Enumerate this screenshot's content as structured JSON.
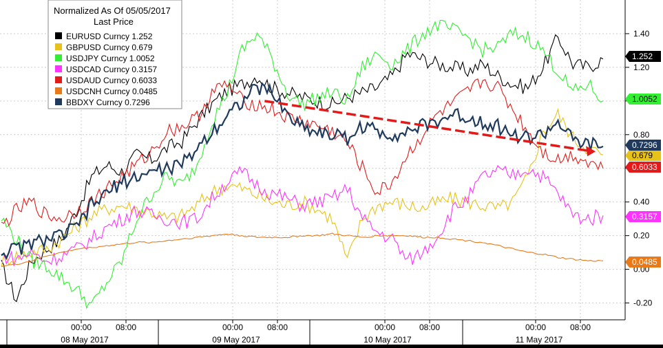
{
  "legend": {
    "title": "Normalized As Of 05/05/2017",
    "subtitle": "Last Price",
    "entries": [
      {
        "name": "EURUSD Curncy",
        "value": "1.252",
        "color": "#000000"
      },
      {
        "name": "GBPUSD Curncy",
        "value": "0.679",
        "color": "#e6c21a"
      },
      {
        "name": "USDJPY Curncy",
        "value": "1.0052",
        "color": "#33ee33"
      },
      {
        "name": "USDCAD Curncy",
        "value": "0.3157",
        "color": "#ff33ff"
      },
      {
        "name": "USDAUD Curncy",
        "value": "0.6033",
        "color": "#e31a1a"
      },
      {
        "name": "USDCNH Curncy",
        "value": "0.0485",
        "color": "#e87a1a"
      },
      {
        "name": "BBDXY Curncy",
        "value": "0.7296",
        "color": "#1f3a5c"
      }
    ]
  },
  "chart_data": {
    "type": "line",
    "ylim": [
      -0.3,
      1.6
    ],
    "y_ticks": [
      "1.40",
      "1.20",
      "1.00",
      "0.80",
      "0.60",
      "0.40",
      "0.20",
      "0.00",
      "-0.20"
    ],
    "y_tick_values": [
      1.4,
      1.2,
      1.0,
      0.8,
      0.6,
      0.4,
      0.2,
      0.0,
      -0.2
    ],
    "time_ticks": [
      "00:00",
      "08:00",
      "00:00",
      "08:00",
      "00:00",
      "08:00",
      "00:00",
      "08:00"
    ],
    "day_labels": [
      "08 May 2017",
      "09 May 2017",
      "10 May 2017",
      "11 May 2017"
    ],
    "series": [
      {
        "name": "EURUSD Curncy",
        "color": "#000000",
        "last": "1.252",
        "values": [
          0.02,
          -0.18,
          0.05,
          0.12,
          0.18,
          0.35,
          0.55,
          0.62,
          0.58,
          0.68,
          0.65,
          0.72,
          0.76,
          0.88,
          0.98,
          1.06,
          1.1,
          1.15,
          1.08,
          1.05,
          1.02,
          1.0,
          0.98,
          1.02,
          1.05,
          1.08,
          1.15,
          1.28,
          1.25,
          1.22,
          1.2,
          1.18,
          1.22,
          1.15,
          1.1,
          1.08,
          1.2,
          1.38,
          1.22,
          1.2,
          1.25
        ]
      },
      {
        "name": "GBPUSD Curncy",
        "color": "#e6c21a",
        "last": "0.679",
        "values": [
          0.05,
          0.08,
          0.1,
          0.12,
          0.18,
          0.25,
          0.32,
          0.36,
          0.38,
          0.36,
          0.34,
          0.3,
          0.32,
          0.38,
          0.46,
          0.5,
          0.48,
          0.44,
          0.4,
          0.38,
          0.4,
          0.36,
          0.3,
          0.05,
          0.3,
          0.38,
          0.4,
          0.38,
          0.36,
          0.4,
          0.42,
          0.4,
          0.38,
          0.36,
          0.4,
          0.55,
          0.82,
          0.92,
          0.78,
          0.72,
          0.68
        ]
      },
      {
        "name": "USDJPY Curncy",
        "color": "#33ee33",
        "last": "1.0052",
        "values": [
          0.3,
          0.18,
          0.05,
          0.02,
          -0.05,
          -0.12,
          -0.22,
          -0.08,
          0.05,
          0.3,
          0.45,
          0.55,
          0.5,
          0.62,
          0.88,
          1.05,
          1.3,
          1.4,
          1.25,
          1.05,
          0.98,
          1.02,
          1.05,
          1.0,
          1.2,
          1.28,
          1.22,
          1.3,
          1.4,
          1.45,
          1.42,
          1.38,
          1.3,
          1.32,
          1.4,
          1.38,
          1.3,
          1.18,
          1.05,
          1.1,
          1.0
        ]
      },
      {
        "name": "USDCAD Curncy",
        "color": "#ff33ff",
        "last": "0.3157",
        "values": [
          0.08,
          0.06,
          0.1,
          0.05,
          0.08,
          0.12,
          0.18,
          0.25,
          0.3,
          0.35,
          0.32,
          0.3,
          0.28,
          0.3,
          0.42,
          0.52,
          0.58,
          0.5,
          0.45,
          0.42,
          0.38,
          0.4,
          0.42,
          0.48,
          0.3,
          0.22,
          0.18,
          0.05,
          0.1,
          0.2,
          0.35,
          0.42,
          0.55,
          0.58,
          0.56,
          0.6,
          0.55,
          0.45,
          0.32,
          0.3,
          0.32
        ]
      },
      {
        "name": "USDAUD Curncy",
        "color": "#e31a1a",
        "last": "0.6033",
        "values": [
          0.25,
          0.35,
          0.4,
          0.32,
          0.3,
          0.35,
          0.4,
          0.48,
          0.55,
          0.62,
          0.7,
          0.82,
          0.85,
          0.9,
          1.05,
          1.1,
          1.0,
          0.98,
          0.95,
          0.9,
          0.88,
          0.85,
          0.82,
          0.75,
          0.6,
          0.45,
          0.52,
          0.68,
          0.8,
          0.92,
          0.98,
          1.05,
          1.12,
          1.08,
          0.95,
          0.82,
          0.7,
          0.65,
          0.68,
          0.64,
          0.6
        ]
      },
      {
        "name": "USDCNH Curncy",
        "color": "#e87a1a",
        "last": "0.0485",
        "values": [
          0.02,
          0.03,
          0.05,
          0.08,
          0.1,
          0.12,
          0.13,
          0.14,
          0.15,
          0.16,
          0.16,
          0.17,
          0.18,
          0.19,
          0.2,
          0.21,
          0.2,
          0.19,
          0.19,
          0.19,
          0.2,
          0.2,
          0.21,
          0.2,
          0.19,
          0.2,
          0.2,
          0.2,
          0.19,
          0.19,
          0.18,
          0.17,
          0.16,
          0.14,
          0.12,
          0.1,
          0.09,
          0.07,
          0.06,
          0.05,
          0.05
        ]
      },
      {
        "name": "BBDXY Curncy",
        "color": "#1f3a5c",
        "last": "0.7296",
        "values": [
          0.1,
          0.12,
          0.15,
          0.18,
          0.2,
          0.25,
          0.38,
          0.45,
          0.52,
          0.55,
          0.58,
          0.6,
          0.62,
          0.72,
          0.82,
          0.92,
          1.0,
          1.08,
          1.05,
          0.92,
          0.85,
          0.82,
          0.8,
          0.78,
          0.85,
          0.82,
          0.8,
          0.82,
          0.85,
          0.88,
          0.92,
          0.9,
          0.88,
          0.85,
          0.8,
          0.78,
          0.8,
          0.88,
          0.76,
          0.74,
          0.73
        ]
      }
    ],
    "trend_arrow": {
      "color": "#e31a1a",
      "from": [
        17.5,
        1.0
      ],
      "to": [
        39.5,
        0.7
      ]
    }
  }
}
